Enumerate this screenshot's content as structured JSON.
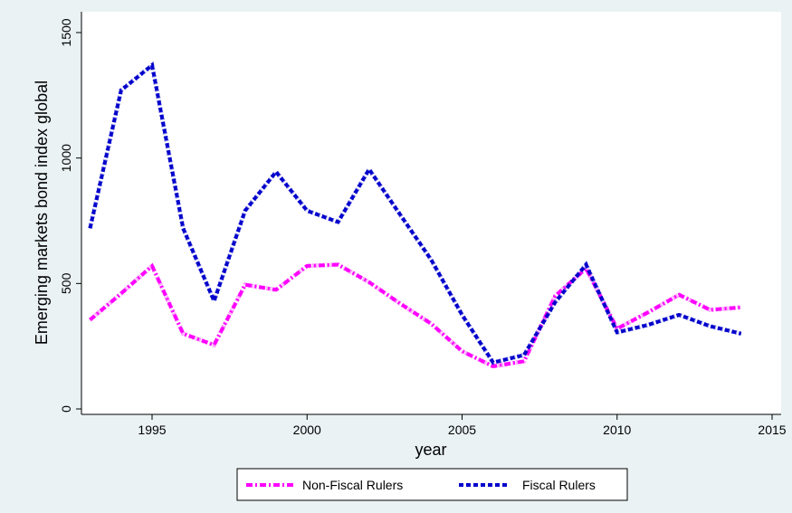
{
  "chart_data": {
    "type": "line",
    "xlabel": "year",
    "ylabel": "Emerging markets bond index global",
    "xlim": [
      1993,
      2015
    ],
    "ylim": [
      0,
      1500
    ],
    "x_ticks": [
      1995,
      2000,
      2005,
      2010,
      2015
    ],
    "y_ticks": [
      0,
      500,
      1000,
      1500
    ],
    "grid": false,
    "legend_position": "bottom",
    "x": [
      1993,
      1994,
      1995,
      1996,
      1997,
      1998,
      1999,
      2000,
      2001,
      2002,
      2003,
      2004,
      2005,
      2006,
      2007,
      2008,
      2009,
      2010,
      2011,
      2012,
      2013,
      2014
    ],
    "series": [
      {
        "name": "Non-Fiscal Rulers",
        "color": "#ff00ff",
        "line_style": "dash-dot",
        "values": [
          355,
          460,
          570,
          300,
          255,
          495,
          475,
          570,
          575,
          505,
          420,
          340,
          230,
          170,
          190,
          450,
          560,
          320,
          385,
          455,
          395,
          405
        ]
      },
      {
        "name": "Fiscal Rulers",
        "color": "#0000cc",
        "line_style": "dotted",
        "values": [
          720,
          1270,
          1370,
          720,
          430,
          790,
          945,
          790,
          745,
          955,
          775,
          595,
          375,
          185,
          215,
          425,
          575,
          305,
          335,
          375,
          330,
          300
        ]
      }
    ]
  }
}
